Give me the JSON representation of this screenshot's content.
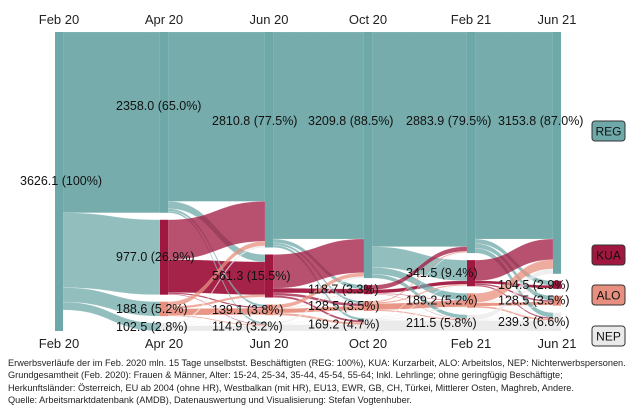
{
  "chart_data": {
    "type": "sankey",
    "time_points": [
      "Feb 20",
      "Apr 20",
      "Jun 20",
      "Oct 20",
      "Feb 21",
      "Jun 21"
    ],
    "states": [
      {
        "key": "REG",
        "label": "REG",
        "color": "#6fa8a8"
      },
      {
        "key": "KUA",
        "label": "KUA",
        "color": "#a0173f"
      },
      {
        "key": "ALO",
        "label": "ALO",
        "color": "#e8907f"
      },
      {
        "key": "NEP",
        "label": "NEP",
        "color": "#eaeaea"
      }
    ],
    "nodes": {
      "REG": [
        3626.1,
        2358.0,
        2810.8,
        3209.8,
        2883.9,
        3153.8
      ],
      "KUA": [
        null,
        977.0,
        561.3,
        118.7,
        341.5,
        104.5
      ],
      "ALO": [
        null,
        188.6,
        139.1,
        128.5,
        189.2,
        128.5
      ],
      "NEP": [
        null,
        102.5,
        114.9,
        169.2,
        211.5,
        239.3
      ]
    },
    "node_labels": {
      "REG": [
        "3626.1 (100%)",
        "2358.0 (65.0%)",
        "2810.8 (77.5%)",
        "3209.8 (88.5%)",
        "2883.9 (79.5%)",
        "3153.8 (87.0%)"
      ],
      "KUA": [
        "",
        "977.0 (26.9%)",
        "561.3 (15.5%)",
        "118.7 (3.3%)",
        "341.5 (9.4%)",
        "104.5 (2.9%)"
      ],
      "ALO": [
        "",
        "188.6 (5.2%)",
        "139.1 (3.8%)",
        "128.5 (3.5%)",
        "189.2 (5.2%)",
        "128.5 (3.5%)"
      ],
      "NEP": [
        "",
        "102.5 (2.8%)",
        "114.9 (3.2%)",
        "169.2 (4.7%)",
        "211.5 (5.8%)",
        "239.3 (6.6%)"
      ]
    }
  },
  "caption": {
    "line1": "Erwerbsverläufe der im Feb. 2020 mln. 15 Tage unselbstst. Beschäftigten (REG: 100%), KUA: Kurzarbeit, ALO: Arbeitslos, NEP: Nichterwerbspersonen.",
    "line2": "Grundgesamtheit (Feb. 2020): Frauen & Männer,  Alter: 15-24, 25-34, 35-44, 45-54, 55-64;  Inkl. Lehrlinge;  ohne geringfügig Beschäftigte;",
    "line3": "Herkunftsländer: Österreich, EU ab 2004 (ohne HR), Westbalkan (mit HR), EU13, EWR, GB, CH, Türkei, Mittlerer Osten, Maghreb, Andere.",
    "line4": "Quelle: Arbeitsmarktdatenbank (AMDB), Datenauswertung und Visualisierung: Stefan Vogtenhuber."
  }
}
